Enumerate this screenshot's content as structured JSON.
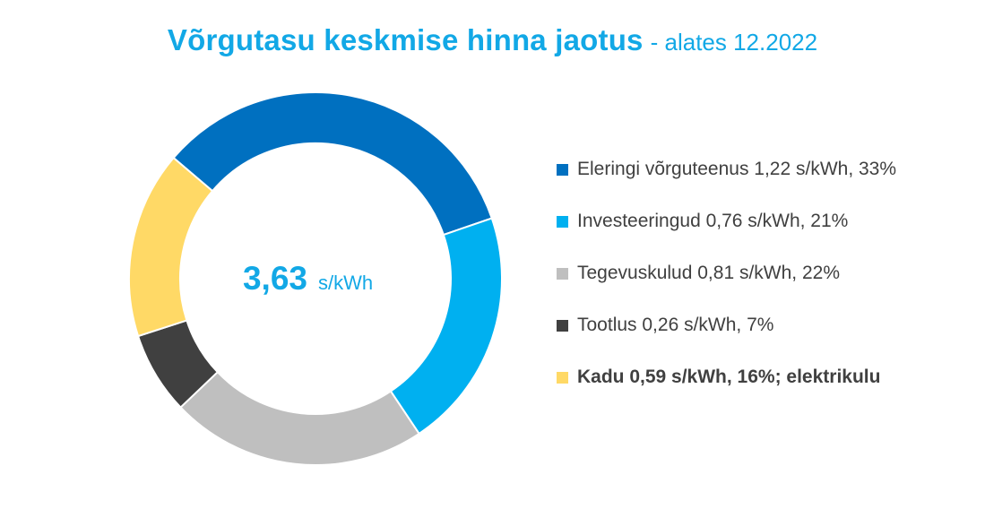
{
  "chart_data": {
    "type": "pie",
    "title": "Võrgutasu keskmise hinna jaotus",
    "subtitle": "- alates 12.2022",
    "center_value": "3,63",
    "center_unit": "s/kWh",
    "slices": [
      {
        "value": 1.22,
        "color": "#0070c0",
        "label": "Eleringi võrguteenus  1,22 s/kWh, 33%",
        "bold": false
      },
      {
        "value": 0.76,
        "color": "#00b0f0",
        "label": "Investeeringud  0,76 s/kWh, 21%",
        "bold": false
      },
      {
        "value": 0.81,
        "color": "#bfbfbf",
        "label": "Tegevuskulud  0,81 s/kWh, 22%",
        "bold": false
      },
      {
        "value": 0.26,
        "color": "#404040",
        "label": "Tootlus  0,26 s/kWh, 7%",
        "bold": false
      },
      {
        "value": 0.59,
        "color": "#ffd966",
        "label": "Kadu  0,59 s/kWh, 16%; elektrikulu",
        "bold": true
      }
    ]
  }
}
